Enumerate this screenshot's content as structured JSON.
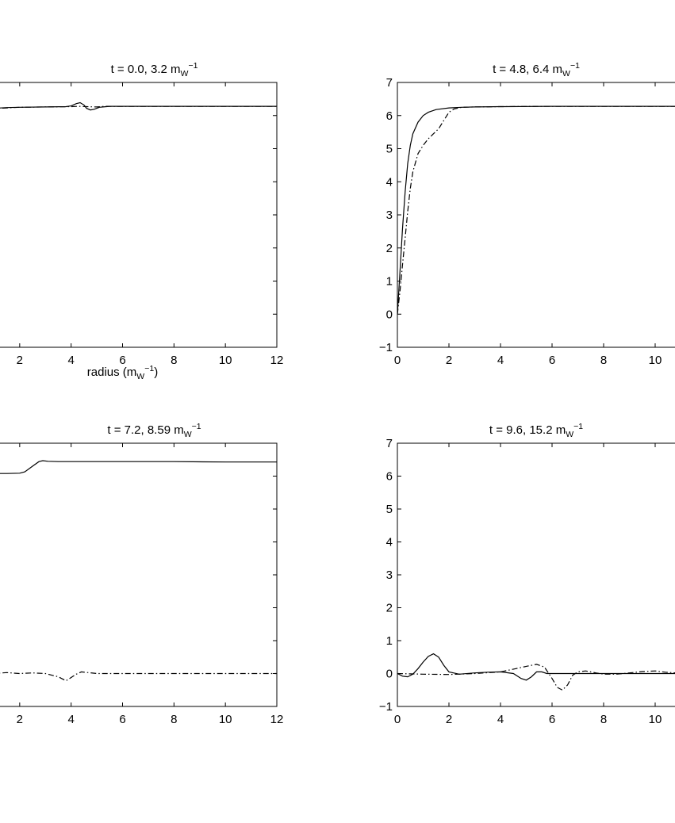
{
  "chart_data": [
    {
      "type": "line",
      "title": "t = 0.0, 3.2 m",
      "title_sub": "W",
      "title_sup": "−1",
      "xlabel": "radius (m",
      "xlabel_sub": "W",
      "xlabel_sup": "−1",
      "xlabel_close": ")",
      "xlim": [
        0,
        12
      ],
      "ylim": [
        -1,
        7
      ],
      "x_ticks": [
        "2",
        "4",
        "6",
        "8",
        "10",
        "12"
      ],
      "y_ticks": [],
      "series": [
        {
          "style": "solid",
          "points": [
            [
              0,
              6.1
            ],
            [
              0.3,
              6.15
            ],
            [
              0.6,
              6.19
            ],
            [
              1,
              6.22
            ],
            [
              1.5,
              6.24
            ],
            [
              2,
              6.25
            ],
            [
              3,
              6.26
            ],
            [
              3.8,
              6.27
            ],
            [
              4,
              6.29
            ],
            [
              4.2,
              6.36
            ],
            [
              4.35,
              6.39
            ],
            [
              4.5,
              6.32
            ],
            [
              4.6,
              6.22
            ],
            [
              4.75,
              6.17
            ],
            [
              4.9,
              6.19
            ],
            [
              5.1,
              6.25
            ],
            [
              5.5,
              6.28
            ],
            [
              6,
              6.28
            ],
            [
              8,
              6.28
            ],
            [
              10,
              6.28
            ],
            [
              12,
              6.28
            ]
          ]
        },
        {
          "style": "dashdot",
          "points": [
            [
              0,
              6.08
            ],
            [
              0.3,
              6.14
            ],
            [
              0.6,
              6.18
            ],
            [
              1,
              6.21
            ],
            [
              1.5,
              6.23
            ],
            [
              2,
              6.25
            ],
            [
              3,
              6.26
            ],
            [
              4,
              6.27
            ],
            [
              4.3,
              6.28
            ],
            [
              4.6,
              6.27
            ],
            [
              5,
              6.26
            ],
            [
              5.3,
              6.28
            ],
            [
              6,
              6.28
            ],
            [
              8,
              6.28
            ],
            [
              10,
              6.28
            ],
            [
              12,
              6.28
            ]
          ]
        }
      ]
    },
    {
      "type": "line",
      "title": "t = 4.8, 6.4 m",
      "title_sub": "W",
      "title_sup": "−1",
      "xlim": [
        0,
        12
      ],
      "ylim": [
        -1,
        7
      ],
      "x_ticks": [
        "0",
        "2",
        "4",
        "6",
        "8",
        "10"
      ],
      "y_ticks": [
        "−1",
        "0",
        "1",
        "2",
        "3",
        "4",
        "5",
        "6",
        "7"
      ],
      "series": [
        {
          "style": "solid",
          "points": [
            [
              0,
              0
            ],
            [
              0.1,
              1.3
            ],
            [
              0.2,
              2.6
            ],
            [
              0.3,
              3.7
            ],
            [
              0.4,
              4.55
            ],
            [
              0.5,
              5.1
            ],
            [
              0.6,
              5.45
            ],
            [
              0.8,
              5.8
            ],
            [
              1,
              6.0
            ],
            [
              1.2,
              6.1
            ],
            [
              1.5,
              6.18
            ],
            [
              2,
              6.23
            ],
            [
              2.5,
              6.25
            ],
            [
              3,
              6.26
            ],
            [
              4,
              6.27
            ],
            [
              6,
              6.28
            ],
            [
              8,
              6.28
            ],
            [
              10,
              6.28
            ],
            [
              12,
              6.28
            ]
          ]
        },
        {
          "style": "dashdot",
          "points": [
            [
              0,
              0
            ],
            [
              0.1,
              0.7
            ],
            [
              0.2,
              1.5
            ],
            [
              0.3,
              2.3
            ],
            [
              0.4,
              3.1
            ],
            [
              0.5,
              3.8
            ],
            [
              0.6,
              4.3
            ],
            [
              0.8,
              4.85
            ],
            [
              1,
              5.1
            ],
            [
              1.2,
              5.3
            ],
            [
              1.4,
              5.45
            ],
            [
              1.6,
              5.6
            ],
            [
              1.8,
              5.85
            ],
            [
              2,
              6.1
            ],
            [
              2.2,
              6.2
            ],
            [
              2.5,
              6.25
            ],
            [
              3,
              6.26
            ],
            [
              4,
              6.27
            ],
            [
              6,
              6.28
            ],
            [
              8,
              6.28
            ],
            [
              10,
              6.28
            ],
            [
              12,
              6.28
            ]
          ]
        }
      ]
    },
    {
      "type": "line",
      "title": "t = 7.2, 8.59 m",
      "title_sub": "W",
      "title_sup": "−1",
      "xlim": [
        0,
        12
      ],
      "ylim": [
        -1,
        7
      ],
      "x_ticks": [
        "2",
        "4",
        "6",
        "8",
        "10",
        "12"
      ],
      "y_ticks": [],
      "series": [
        {
          "style": "solid",
          "points": [
            [
              0,
              6.05
            ],
            [
              0.5,
              6.08
            ],
            [
              1,
              6.08
            ],
            [
              1.5,
              6.08
            ],
            [
              2,
              6.09
            ],
            [
              2.2,
              6.13
            ],
            [
              2.5,
              6.3
            ],
            [
              2.75,
              6.44
            ],
            [
              2.9,
              6.47
            ],
            [
              3.1,
              6.45
            ],
            [
              3.5,
              6.44
            ],
            [
              4,
              6.44
            ],
            [
              6,
              6.44
            ],
            [
              8,
              6.44
            ],
            [
              10,
              6.43
            ],
            [
              12,
              6.43
            ]
          ]
        },
        {
          "style": "dashdot",
          "points": [
            [
              0,
              -0.1
            ],
            [
              0.5,
              -0.05
            ],
            [
              1,
              0
            ],
            [
              1.5,
              0.03
            ],
            [
              2,
              0.0
            ],
            [
              2.5,
              0.02
            ],
            [
              3,
              0.0
            ],
            [
              3.5,
              -0.1
            ],
            [
              3.8,
              -0.22
            ],
            [
              4,
              -0.12
            ],
            [
              4.2,
              -0.02
            ],
            [
              4.4,
              0.05
            ],
            [
              5,
              0.0
            ],
            [
              8,
              0.0
            ],
            [
              12,
              0.0
            ]
          ]
        }
      ]
    },
    {
      "type": "line",
      "title": "t = 9.6, 15.2 m",
      "title_sub": "W",
      "title_sup": "−1",
      "xlim": [
        0,
        12
      ],
      "ylim": [
        -1,
        7
      ],
      "x_ticks": [
        "0",
        "2",
        "4",
        "6",
        "8",
        "10"
      ],
      "y_ticks": [
        "−1",
        "0",
        "1",
        "2",
        "3",
        "4",
        "5",
        "6",
        "7"
      ],
      "series": [
        {
          "style": "solid",
          "points": [
            [
              0,
              0
            ],
            [
              0.2,
              -0.08
            ],
            [
              0.4,
              -0.1
            ],
            [
              0.6,
              -0.02
            ],
            [
              0.8,
              0.15
            ],
            [
              1,
              0.35
            ],
            [
              1.2,
              0.52
            ],
            [
              1.4,
              0.6
            ],
            [
              1.6,
              0.5
            ],
            [
              1.8,
              0.25
            ],
            [
              2,
              0.05
            ],
            [
              2.4,
              -0.02
            ],
            [
              3,
              0.02
            ],
            [
              3.5,
              0.04
            ],
            [
              4,
              0.05
            ],
            [
              4.5,
              0.0
            ],
            [
              4.8,
              -0.15
            ],
            [
              5,
              -0.2
            ],
            [
              5.2,
              -0.1
            ],
            [
              5.4,
              0.05
            ],
            [
              5.6,
              0.05
            ],
            [
              5.8,
              0.0
            ],
            [
              6,
              0
            ],
            [
              8,
              0
            ],
            [
              10,
              0
            ],
            [
              12,
              0
            ]
          ]
        },
        {
          "style": "dashdot",
          "points": [
            [
              0,
              0
            ],
            [
              1,
              -0.02
            ],
            [
              2,
              -0.03
            ],
            [
              3,
              0.0
            ],
            [
              4,
              0.05
            ],
            [
              4.6,
              0.15
            ],
            [
              5,
              0.22
            ],
            [
              5.4,
              0.28
            ],
            [
              5.7,
              0.2
            ],
            [
              6,
              -0.15
            ],
            [
              6.2,
              -0.42
            ],
            [
              6.4,
              -0.5
            ],
            [
              6.6,
              -0.35
            ],
            [
              6.8,
              -0.05
            ],
            [
              7,
              0.05
            ],
            [
              7.3,
              0.08
            ],
            [
              7.7,
              0.02
            ],
            [
              8,
              -0.02
            ],
            [
              8.5,
              -0.02
            ],
            [
              9,
              0.02
            ],
            [
              9.5,
              0.06
            ],
            [
              10,
              0.08
            ],
            [
              10.4,
              0.04
            ],
            [
              10.8,
              0.02
            ],
            [
              12,
              0.0
            ]
          ]
        }
      ]
    }
  ]
}
